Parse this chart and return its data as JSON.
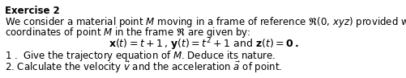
{
  "bg_color": "#ffffff",
  "text_color": "#000000",
  "fs": 8.5,
  "title": "Exercise 2",
  "line1": "We consider a material point $M$ moving in a frame of reference $\\mathfrak{R}$(0, $xyz$) provided with the base ($i$ $\\,j$ , $k$ ). The",
  "line2": "coordinates of point $M$ in the frame $\\mathfrak{R}$ are given by:",
  "eq": "$\\mathbf{x}$$(t) = t + 1$\\,,\\,$\\mathbf{y}$$(t) = t^2 + 1$ and $\\mathbf{z}$$(t) = \\mathbf{0}$\\,.",
  "item1": "1 .  Give the trajectory equation of $M$. Deduce its nature.",
  "item2": "2. Calculate the velocity $\\vec{v}$ and the acceleration $\\vec{a}$ of point."
}
